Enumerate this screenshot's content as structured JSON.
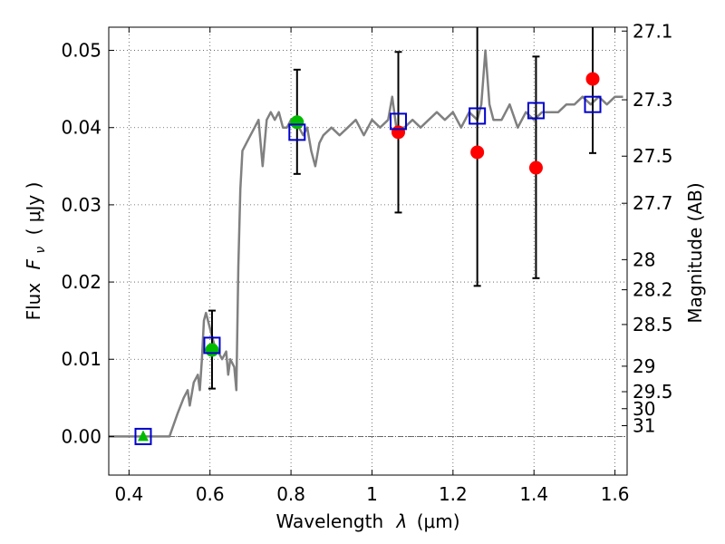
{
  "chart_data": {
    "type": "scatter",
    "xlabel_text": "Wavelength",
    "xlabel_symbol": "λ",
    "xlabel_unit": "(μm)",
    "ylabel_text": "Flux",
    "ylabel_symbol": "F",
    "ylabel_subscript": "ν",
    "ylabel_unit": "( μJy )",
    "y2label": "Magnitude (AB)",
    "xlim": [
      0.35,
      1.63
    ],
    "ylim": [
      -0.005,
      0.053
    ],
    "grid": true,
    "x_ticks": [
      {
        "value": 0.4,
        "label": "0.4"
      },
      {
        "value": 0.6,
        "label": "0.6"
      },
      {
        "value": 0.8,
        "label": "0.8"
      },
      {
        "value": 1.0,
        "label": "1"
      },
      {
        "value": 1.2,
        "label": "1.2"
      },
      {
        "value": 1.4,
        "label": "1.4"
      },
      {
        "value": 1.6,
        "label": "1.6"
      }
    ],
    "y_ticks": [
      {
        "value": 0.0,
        "label": "0.00"
      },
      {
        "value": 0.01,
        "label": "0.01"
      },
      {
        "value": 0.02,
        "label": "0.02"
      },
      {
        "value": 0.03,
        "label": "0.03"
      },
      {
        "value": 0.04,
        "label": "0.04"
      },
      {
        "value": 0.05,
        "label": "0.05"
      }
    ],
    "mag_ticks": [
      {
        "flux": 0.0525,
        "label": "27.1"
      },
      {
        "flux": 0.0436,
        "label": "27.3"
      },
      {
        "flux": 0.0363,
        "label": "27.5"
      },
      {
        "flux": 0.0302,
        "label": "27.7"
      },
      {
        "flux": 0.0229,
        "label": "28"
      },
      {
        "flux": 0.019,
        "label": "28.2"
      },
      {
        "flux": 0.0145,
        "label": "28.5"
      },
      {
        "flux": 0.0091,
        "label": "29"
      },
      {
        "flux": 0.0058,
        "label": "29.5"
      },
      {
        "flux": 0.0036,
        "label": "30"
      },
      {
        "flux": 0.0014,
        "label": "31"
      }
    ],
    "model_spectrum": {
      "color": "#808080",
      "points": [
        [
          0.35,
          0.0
        ],
        [
          0.5,
          0.0
        ],
        [
          0.52,
          0.003
        ],
        [
          0.535,
          0.005
        ],
        [
          0.545,
          0.006
        ],
        [
          0.55,
          0.004
        ],
        [
          0.56,
          0.007
        ],
        [
          0.57,
          0.008
        ],
        [
          0.575,
          0.006
        ],
        [
          0.58,
          0.01
        ],
        [
          0.585,
          0.015
        ],
        [
          0.59,
          0.016
        ],
        [
          0.6,
          0.014
        ],
        [
          0.61,
          0.012
        ],
        [
          0.62,
          0.011
        ],
        [
          0.63,
          0.01
        ],
        [
          0.64,
          0.011
        ],
        [
          0.645,
          0.008
        ],
        [
          0.65,
          0.01
        ],
        [
          0.66,
          0.009
        ],
        [
          0.665,
          0.006
        ],
        [
          0.67,
          0.022
        ],
        [
          0.675,
          0.032
        ],
        [
          0.68,
          0.037
        ],
        [
          0.69,
          0.038
        ],
        [
          0.7,
          0.039
        ],
        [
          0.71,
          0.04
        ],
        [
          0.72,
          0.041
        ],
        [
          0.73,
          0.035
        ],
        [
          0.74,
          0.041
        ],
        [
          0.75,
          0.042
        ],
        [
          0.76,
          0.041
        ],
        [
          0.77,
          0.042
        ],
        [
          0.78,
          0.04
        ],
        [
          0.79,
          0.04
        ],
        [
          0.8,
          0.041
        ],
        [
          0.81,
          0.04
        ],
        [
          0.82,
          0.04
        ],
        [
          0.83,
          0.039
        ],
        [
          0.84,
          0.04
        ],
        [
          0.85,
          0.037
        ],
        [
          0.86,
          0.035
        ],
        [
          0.87,
          0.038
        ],
        [
          0.88,
          0.039
        ],
        [
          0.9,
          0.04
        ],
        [
          0.92,
          0.039
        ],
        [
          0.94,
          0.04
        ],
        [
          0.96,
          0.041
        ],
        [
          0.98,
          0.039
        ],
        [
          1.0,
          0.041
        ],
        [
          1.02,
          0.04
        ],
        [
          1.04,
          0.041
        ],
        [
          1.05,
          0.044
        ],
        [
          1.06,
          0.04
        ],
        [
          1.08,
          0.04
        ],
        [
          1.1,
          0.041
        ],
        [
          1.12,
          0.04
        ],
        [
          1.14,
          0.041
        ],
        [
          1.16,
          0.042
        ],
        [
          1.18,
          0.041
        ],
        [
          1.2,
          0.042
        ],
        [
          1.22,
          0.04
        ],
        [
          1.24,
          0.042
        ],
        [
          1.26,
          0.041
        ],
        [
          1.27,
          0.043
        ],
        [
          1.28,
          0.05
        ],
        [
          1.29,
          0.043
        ],
        [
          1.3,
          0.041
        ],
        [
          1.32,
          0.041
        ],
        [
          1.34,
          0.043
        ],
        [
          1.36,
          0.04
        ],
        [
          1.38,
          0.042
        ],
        [
          1.4,
          0.041
        ],
        [
          1.42,
          0.042
        ],
        [
          1.44,
          0.042
        ],
        [
          1.46,
          0.042
        ],
        [
          1.48,
          0.043
        ],
        [
          1.5,
          0.043
        ],
        [
          1.52,
          0.044
        ],
        [
          1.54,
          0.043
        ],
        [
          1.56,
          0.044
        ],
        [
          1.58,
          0.043
        ],
        [
          1.6,
          0.044
        ],
        [
          1.62,
          0.044
        ]
      ]
    },
    "observed_points": [
      {
        "x": 0.435,
        "y": 0.0,
        "marker": "triangle",
        "color": "#00bb00"
      },
      {
        "x": 0.605,
        "y": 0.0112,
        "yerr": [
          0.0062,
          0.0163
        ],
        "marker": "circle",
        "color": "#00bb00"
      },
      {
        "x": 0.815,
        "y": 0.0407,
        "yerr": [
          0.034,
          0.0475
        ],
        "marker": "circle",
        "color": "#00bb00"
      },
      {
        "x": 1.065,
        "y": 0.0394,
        "yerr": [
          0.029,
          0.0498
        ],
        "marker": "circle",
        "color": "#ff0000"
      },
      {
        "x": 1.26,
        "y": 0.0368,
        "yerr": [
          0.0195,
          0.053
        ],
        "marker": "circle",
        "color": "#ff0000"
      },
      {
        "x": 1.405,
        "y": 0.0348,
        "yerr": [
          0.0205,
          0.0492
        ],
        "marker": "circle",
        "color": "#ff0000"
      },
      {
        "x": 1.545,
        "y": 0.0463,
        "yerr": [
          0.0367,
          0.053
        ],
        "marker": "circle",
        "color": "#ff0000"
      }
    ],
    "model_points": [
      {
        "x": 0.435,
        "y": 0.0
      },
      {
        "x": 0.605,
        "y": 0.0118
      },
      {
        "x": 0.815,
        "y": 0.0394
      },
      {
        "x": 1.065,
        "y": 0.0408
      },
      {
        "x": 1.26,
        "y": 0.0415
      },
      {
        "x": 1.405,
        "y": 0.0422
      },
      {
        "x": 1.545,
        "y": 0.043
      }
    ],
    "colors": {
      "model_marker": "#0000cc",
      "errorbar": "#000000",
      "grid": "#555555"
    }
  }
}
